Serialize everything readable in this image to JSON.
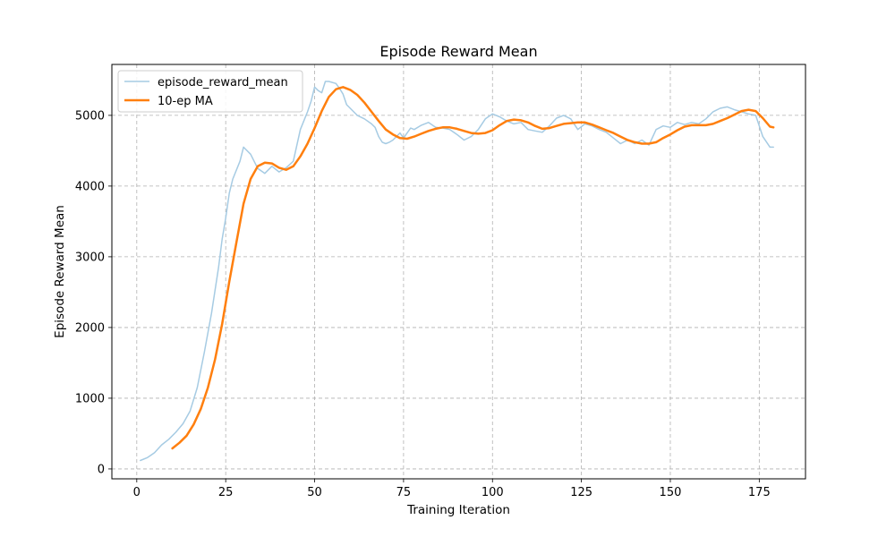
{
  "chart_data": {
    "type": "line",
    "title": "Episode Reward Mean",
    "xlabel": "Training Iteration",
    "ylabel": "Episode Reward Mean",
    "xlim": [
      -7,
      188
    ],
    "ylim": [
      -140,
      5720
    ],
    "xticks": [
      0,
      25,
      50,
      75,
      100,
      125,
      150,
      175
    ],
    "yticks": [
      0,
      1000,
      2000,
      3000,
      4000,
      5000
    ],
    "grid": true,
    "legend_position": "top-left",
    "series": [
      {
        "name": "episode_reward_mean",
        "color": "#a6cbe3",
        "x": [
          1,
          3,
          5,
          7,
          9,
          11,
          13,
          15,
          17,
          19,
          21,
          23,
          24,
          25,
          26,
          27,
          29,
          30,
          32,
          34,
          36,
          38,
          40,
          42,
          44,
          46,
          48,
          49,
          50,
          51,
          52,
          53,
          54,
          56,
          57,
          58,
          59,
          60,
          62,
          64,
          66,
          67,
          68,
          69,
          70,
          71,
          72,
          74,
          75,
          76,
          77,
          78,
          80,
          82,
          84,
          86,
          88,
          90,
          92,
          94,
          96,
          98,
          100,
          102,
          104,
          106,
          108,
          110,
          112,
          114,
          116,
          118,
          120,
          122,
          124,
          126,
          128,
          130,
          132,
          134,
          136,
          138,
          140,
          142,
          144,
          146,
          148,
          150,
          152,
          154,
          156,
          158,
          160,
          162,
          164,
          166,
          168,
          170,
          172,
          174,
          176,
          178,
          179
        ],
        "y": [
          120,
          160,
          230,
          340,
          420,
          520,
          640,
          820,
          1150,
          1650,
          2200,
          2850,
          3250,
          3550,
          3900,
          4100,
          4350,
          4550,
          4450,
          4250,
          4180,
          4280,
          4200,
          4260,
          4350,
          4800,
          5050,
          5200,
          5400,
          5350,
          5320,
          5480,
          5480,
          5450,
          5380,
          5300,
          5150,
          5100,
          5000,
          4950,
          4880,
          4830,
          4700,
          4620,
          4600,
          4620,
          4650,
          4750,
          4680,
          4750,
          4820,
          4800,
          4860,
          4900,
          4830,
          4820,
          4800,
          4730,
          4650,
          4700,
          4800,
          4950,
          5020,
          4980,
          4920,
          4880,
          4900,
          4800,
          4780,
          4760,
          4850,
          4960,
          5000,
          4950,
          4800,
          4880,
          4850,
          4800,
          4760,
          4680,
          4600,
          4650,
          4600,
          4650,
          4580,
          4800,
          4850,
          4830,
          4900,
          4870,
          4900,
          4880,
          4950,
          5050,
          5100,
          5120,
          5080,
          5050,
          5020,
          5000,
          4700,
          4550,
          4550
        ]
      },
      {
        "name": "10-ep MA",
        "color": "#ff7f0e",
        "x": [
          10,
          12,
          14,
          16,
          18,
          20,
          22,
          24,
          26,
          28,
          30,
          32,
          34,
          36,
          38,
          40,
          42,
          44,
          46,
          48,
          50,
          52,
          54,
          56,
          58,
          60,
          62,
          64,
          66,
          68,
          70,
          72,
          74,
          76,
          78,
          80,
          82,
          84,
          86,
          88,
          90,
          92,
          94,
          96,
          98,
          100,
          102,
          104,
          106,
          108,
          110,
          112,
          114,
          116,
          118,
          120,
          122,
          124,
          126,
          128,
          130,
          132,
          134,
          136,
          138,
          140,
          142,
          144,
          146,
          148,
          150,
          152,
          154,
          156,
          158,
          160,
          162,
          164,
          166,
          168,
          170,
          172,
          174,
          176,
          178,
          179
        ],
        "y": [
          290,
          370,
          470,
          630,
          850,
          1150,
          1550,
          2050,
          2650,
          3200,
          3750,
          4100,
          4280,
          4330,
          4320,
          4260,
          4230,
          4280,
          4420,
          4600,
          4820,
          5060,
          5260,
          5370,
          5400,
          5360,
          5290,
          5180,
          5050,
          4920,
          4800,
          4730,
          4680,
          4670,
          4700,
          4740,
          4780,
          4810,
          4830,
          4830,
          4810,
          4780,
          4750,
          4740,
          4750,
          4790,
          4860,
          4920,
          4940,
          4930,
          4900,
          4850,
          4810,
          4820,
          4850,
          4880,
          4890,
          4900,
          4900,
          4870,
          4830,
          4790,
          4750,
          4700,
          4650,
          4620,
          4600,
          4600,
          4620,
          4680,
          4730,
          4790,
          4840,
          4860,
          4860,
          4860,
          4880,
          4920,
          4960,
          5010,
          5060,
          5080,
          5060,
          4960,
          4840,
          4830
        ]
      }
    ]
  }
}
